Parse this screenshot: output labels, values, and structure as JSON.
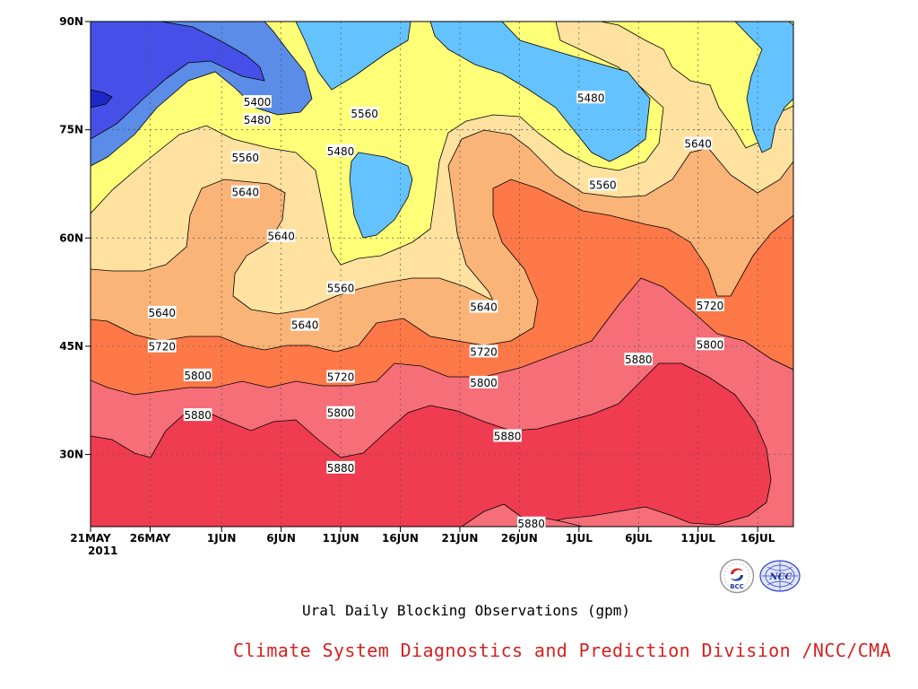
{
  "chart_data": {
    "type": "heatmap",
    "title": "Ural Daily Blocking Observations (gpm)",
    "x_axis": {
      "ticks": [
        "21MAY",
        "26MAY",
        "1JUN",
        "6JUN",
        "11JUN",
        "16JUN",
        "21JUN",
        "26JUN",
        "1JUL",
        "6JUL",
        "11JUL",
        "16JUL"
      ],
      "year_label": "2011",
      "range": [
        "2011-05-21",
        "2011-07-19"
      ]
    },
    "y_axis": {
      "ticks": [
        "30N",
        "45N",
        "60N",
        "75N",
        "90N"
      ],
      "range_deg_n": [
        20,
        90
      ]
    },
    "grid": "dotted",
    "contour_levels": [
      5400,
      5480,
      5560,
      5640,
      5720,
      5800,
      5880
    ],
    "fill_colors": {
      "lt5320": "#1e28c8",
      "5320-5400": "#4650e8",
      "5400-5480": "#5a8ce8",
      "5480-5560": "#64c3ff",
      "5560-5640": "#ffff78",
      "5640-5720": "#ffe1a0",
      "5720-5800": "#fab478",
      "5800-5880": "#ff7848",
      "5880-5960": "#f56e78",
      "gt5880": "#f03c50"
    },
    "contour_labels": [
      {
        "value": "5400",
        "date": "2011-06-04",
        "lat": 78.8
      },
      {
        "value": "5480",
        "date": "2011-06-04",
        "lat": 76.3
      },
      {
        "value": "5560",
        "date": "2011-06-13",
        "lat": 77.2
      },
      {
        "value": "5480",
        "date": "2011-06-11",
        "lat": 72.0
      },
      {
        "value": "5560",
        "date": "2011-06-03",
        "lat": 71.1
      },
      {
        "value": "5640",
        "date": "2011-06-03",
        "lat": 66.3
      },
      {
        "value": "5640",
        "date": "2011-06-06",
        "lat": 60.2
      },
      {
        "value": "5560",
        "date": "2011-06-11",
        "lat": 53.0
      },
      {
        "value": "5640",
        "date": "2011-05-27",
        "lat": 49.6
      },
      {
        "value": "5640",
        "date": "2011-06-08",
        "lat": 47.9
      },
      {
        "value": "5640",
        "date": "2011-06-23",
        "lat": 50.4
      },
      {
        "value": "5720",
        "date": "2011-05-27",
        "lat": 44.9
      },
      {
        "value": "5720",
        "date": "2011-06-11",
        "lat": 40.7
      },
      {
        "value": "5720",
        "date": "2011-06-23",
        "lat": 44.2
      },
      {
        "value": "5800",
        "date": "2011-05-30",
        "lat": 40.9
      },
      {
        "value": "5800",
        "date": "2011-06-11",
        "lat": 35.7
      },
      {
        "value": "5800",
        "date": "2011-06-23",
        "lat": 39.9
      },
      {
        "value": "5880",
        "date": "2011-05-30",
        "lat": 35.4
      },
      {
        "value": "5880",
        "date": "2011-06-11",
        "lat": 28.1
      },
      {
        "value": "5880",
        "date": "2011-06-25",
        "lat": 32.5
      },
      {
        "value": "5880",
        "date": "2011-06-27",
        "lat": 20.4
      },
      {
        "value": "5880",
        "date": "2011-07-06",
        "lat": 43.1
      },
      {
        "value": "5800",
        "date": "2011-07-12",
        "lat": 45.2
      },
      {
        "value": "5720",
        "date": "2011-07-12",
        "lat": 50.6
      },
      {
        "value": "5640",
        "date": "2011-07-11",
        "lat": 73.0
      },
      {
        "value": "5560",
        "date": "2011-07-03",
        "lat": 67.3
      },
      {
        "value": "5480",
        "date": "2011-07-02",
        "lat": 79.4
      }
    ]
  },
  "footer": {
    "credit": "Climate System Diagnostics and Prediction Division /NCC/CMA",
    "logo_left_text": "BCC",
    "logo_right_text": "NCC"
  }
}
